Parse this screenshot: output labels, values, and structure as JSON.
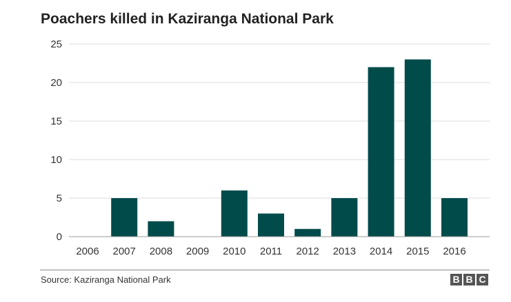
{
  "chart_data": {
    "type": "bar",
    "title": "Poachers killed in Kaziranga National Park",
    "categories": [
      "2006",
      "2007",
      "2008",
      "2009",
      "2010",
      "2011",
      "2012",
      "2013",
      "2014",
      "2015",
      "2016"
    ],
    "values": [
      0,
      5,
      2,
      0,
      6,
      3,
      1,
      5,
      22,
      23,
      5
    ],
    "yticks": [
      "0",
      "5",
      "10",
      "15",
      "20",
      "25"
    ],
    "ylim": [
      0,
      25
    ],
    "grid": true,
    "bar_color": "#024b4b",
    "xlabel": "",
    "ylabel": ""
  },
  "footer": {
    "source": "Source: Kaziranga National Park",
    "logo_letters": [
      "B",
      "B",
      "C"
    ]
  }
}
